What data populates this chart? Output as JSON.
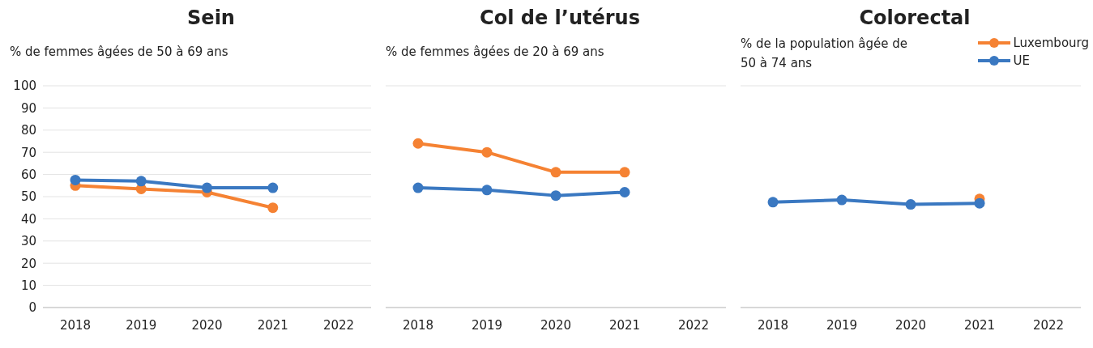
{
  "chart_data": [
    {
      "type": "line",
      "title": "Sein",
      "ylabel": "% de femmes âgées de 50 à 69 ans",
      "categories": [
        "2018",
        "2019",
        "2020",
        "2021",
        "2022"
      ],
      "ylim": [
        0,
        100
      ],
      "yticks": [
        0,
        10,
        20,
        30,
        40,
        50,
        60,
        70,
        80,
        90,
        100
      ],
      "grid": "y",
      "legend": false,
      "marker": "circle",
      "series": [
        {
          "color": "#f58233",
          "values": [
            55,
            53.5,
            52,
            45,
            null
          ]
        },
        {
          "color": "#3a78c1",
          "values": [
            57.5,
            57,
            54,
            54,
            null
          ]
        }
      ]
    },
    {
      "type": "line",
      "title": "Col de l’utérus",
      "ylabel": "% de femmes âgées de 20 à 69 ans",
      "categories": [
        "2018",
        "2019",
        "2020",
        "2021",
        "2022"
      ],
      "ylim": [
        0,
        100
      ],
      "yticks": [
        0,
        10,
        20,
        30,
        40,
        50,
        60,
        70,
        80,
        90,
        100
      ],
      "tick_labels": "x",
      "grid": "y",
      "legend": false,
      "marker": "circle",
      "series": [
        {
          "color": "#f58233",
          "values": [
            74,
            70,
            61,
            61,
            null
          ]
        },
        {
          "color": "#3a78c1",
          "values": [
            54,
            53,
            50.5,
            52,
            null
          ]
        }
      ]
    },
    {
      "type": "line",
      "title": "Colorectal",
      "ylabel": "% de la population âgée de 50 à 74 ans",
      "categories": [
        "2018",
        "2019",
        "2020",
        "2021",
        "2022"
      ],
      "ylim": [
        0,
        100
      ],
      "yticks": [
        0,
        10,
        20,
        30,
        40,
        50,
        60,
        70,
        80,
        90,
        100
      ],
      "tick_labels": "x",
      "grid": "y",
      "legend": "top right",
      "marker": "circle",
      "series": [
        {
          "name": "Luxembourg",
          "color": "#f58233",
          "values": [
            null,
            null,
            null,
            49,
            null
          ]
        },
        {
          "name": "UE",
          "color": "#3a78c1",
          "values": [
            47.5,
            48.5,
            46.5,
            47,
            null
          ]
        }
      ]
    }
  ]
}
